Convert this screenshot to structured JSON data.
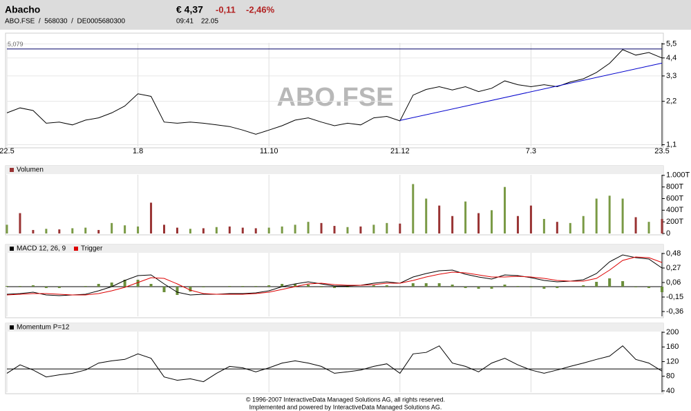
{
  "header": {
    "name": "Abacho",
    "ids": "ABO.FSE  /  568030  /  DE0005680300",
    "price": "€ 4,37",
    "change": "-0,11",
    "change_pct": "-2,46%",
    "time": "09:41",
    "date": "22.05"
  },
  "watermark": "ABO.FSE",
  "footer": [
    "© 1996-2007 InteractiveData Managed Solutions  AG, all rights reserved.",
    "Implemented and powered by  InteractiveData Managed Solutions  AG."
  ],
  "chart_data": [
    {
      "type": "line",
      "log": true,
      "grid": true,
      "xlim": [
        0,
        50
      ],
      "xticks": [
        {
          "value": 0,
          "label": "22.5"
        },
        {
          "value": 10,
          "label": "1.8"
        },
        {
          "value": 20,
          "label": "11.10"
        },
        {
          "value": 30,
          "label": "21.12"
        },
        {
          "value": 40,
          "label": "7.3"
        },
        {
          "value": 50,
          "label": "23.5"
        }
      ],
      "ylim": [
        1.07,
        5.6
      ],
      "yticks": [
        {
          "value": 1.1,
          "label": "1,1"
        },
        {
          "value": 2.2,
          "label": "2,2"
        },
        {
          "value": 3.3,
          "label": "3,3"
        },
        {
          "value": 4.4,
          "label": "4,4"
        },
        {
          "value": 5.5,
          "label": "5,5"
        }
      ],
      "series": [
        {
          "color": "#000000",
          "values": [
            1.83,
            1.98,
            1.9,
            1.55,
            1.58,
            1.51,
            1.63,
            1.69,
            1.83,
            2.04,
            2.48,
            2.38,
            1.58,
            1.55,
            1.58,
            1.55,
            1.51,
            1.47,
            1.39,
            1.3,
            1.39,
            1.49,
            1.63,
            1.69,
            1.58,
            1.49,
            1.55,
            1.51,
            1.69,
            1.73,
            1.61,
            2.43,
            2.66,
            2.78,
            2.64,
            2.78,
            2.57,
            2.71,
            3.05,
            2.87,
            2.78,
            2.87,
            2.78,
            3.0,
            3.15,
            3.49,
            4.04,
            5.02,
            4.6,
            4.8,
            4.4
          ]
        }
      ],
      "hline": {
        "value": 5.079,
        "label": "5,079",
        "color": "#000066"
      },
      "trendline": {
        "color": "#0000cc",
        "x": [
          30,
          50
        ],
        "values": [
          1.62,
          4.05
        ]
      }
    },
    {
      "type": "bar",
      "legend": "Volumen",
      "legend_color": "#993333",
      "ylim": [
        0,
        1010
      ],
      "yticks": [
        0,
        {
          "value": 200,
          "label": "200T"
        },
        {
          "value": 400,
          "label": "400T"
        },
        {
          "value": 600,
          "label": "600T"
        },
        {
          "value": 800,
          "label": "800T"
        },
        {
          "value": 1000,
          "label": "1.000T"
        }
      ],
      "values": [
        150,
        350,
        60,
        80,
        70,
        90,
        100,
        60,
        180,
        140,
        120,
        530,
        150,
        100,
        80,
        90,
        110,
        120,
        100,
        90,
        100,
        120,
        150,
        200,
        180,
        130,
        110,
        120,
        150,
        180,
        170,
        850,
        600,
        480,
        300,
        550,
        350,
        400,
        800,
        300,
        480,
        250,
        200,
        180,
        300,
        600,
        650,
        600,
        280,
        200,
        250
      ],
      "colors": [
        "#7a9a45",
        "#993333",
        "#993333",
        "#7a9a45",
        "#993333",
        "#7a9a45",
        "#7a9a45",
        "#993333",
        "#7a9a45",
        "#7a9a45",
        "#7a9a45",
        "#993333",
        "#993333",
        "#993333",
        "#7a9a45",
        "#993333",
        "#7a9a45",
        "#993333",
        "#993333",
        "#993333",
        "#7a9a45",
        "#7a9a45",
        "#7a9a45",
        "#7a9a45",
        "#993333",
        "#993333",
        "#7a9a45",
        "#993333",
        "#7a9a45",
        "#7a9a45",
        "#993333",
        "#7a9a45",
        "#7a9a45",
        "#993333",
        "#993333",
        "#7a9a45",
        "#993333",
        "#7a9a45",
        "#7a9a45",
        "#993333",
        "#993333",
        "#7a9a45",
        "#993333",
        "#7a9a45",
        "#7a9a45",
        "#7a9a45",
        "#7a9a45",
        "#7a9a45",
        "#993333",
        "#7a9a45",
        "#993333"
      ]
    },
    {
      "type": "line",
      "ylim": [
        -0.43,
        0.49
      ],
      "yticks": [
        {
          "value": -0.36,
          "label": "-0,36"
        },
        {
          "value": -0.15,
          "label": "-0,15"
        },
        {
          "value": 0.06,
          "label": "0,06"
        },
        {
          "value": 0.27,
          "label": "0,27"
        },
        {
          "value": 0.48,
          "label": "0,48"
        }
      ],
      "refline": 0,
      "series": [
        {
          "name": "MACD 12, 26, 9",
          "color": "#000000",
          "values": [
            -0.11,
            -0.1,
            -0.08,
            -0.12,
            -0.13,
            -0.12,
            -0.11,
            -0.06,
            0.0,
            0.09,
            0.16,
            0.17,
            0.04,
            -0.08,
            -0.12,
            -0.11,
            -0.11,
            -0.1,
            -0.1,
            -0.09,
            -0.06,
            0.0,
            0.04,
            0.07,
            0.04,
            0.01,
            0.01,
            0.02,
            0.05,
            0.07,
            0.05,
            0.14,
            0.19,
            0.23,
            0.24,
            0.18,
            0.14,
            0.11,
            0.17,
            0.16,
            0.13,
            0.09,
            0.07,
            0.08,
            0.1,
            0.19,
            0.36,
            0.46,
            0.42,
            0.4,
            0.27
          ]
        },
        {
          "name": "Trigger",
          "color": "#dd0000",
          "values": [
            -0.12,
            -0.11,
            -0.1,
            -0.1,
            -0.11,
            -0.12,
            -0.12,
            -0.1,
            -0.06,
            -0.01,
            0.06,
            0.13,
            0.12,
            0.04,
            -0.05,
            -0.1,
            -0.11,
            -0.11,
            -0.11,
            -0.1,
            -0.08,
            -0.04,
            0.0,
            0.04,
            0.05,
            0.03,
            0.02,
            0.02,
            0.03,
            0.05,
            0.05,
            0.09,
            0.14,
            0.18,
            0.21,
            0.2,
            0.17,
            0.14,
            0.14,
            0.15,
            0.14,
            0.12,
            0.09,
            0.08,
            0.08,
            0.12,
            0.24,
            0.38,
            0.43,
            0.42,
            0.35
          ]
        }
      ],
      "histogram": {
        "color": "#6b8e3a",
        "values": [
          0.01,
          0.01,
          0.02,
          -0.02,
          -0.02,
          0.0,
          0.01,
          0.04,
          0.06,
          0.1,
          0.1,
          0.04,
          -0.08,
          -0.12,
          -0.07,
          -0.01,
          0.0,
          0.01,
          0.01,
          0.01,
          0.02,
          0.04,
          0.04,
          0.03,
          -0.01,
          -0.02,
          -0.01,
          0.0,
          0.02,
          0.02,
          0.0,
          0.05,
          0.05,
          0.05,
          0.03,
          -0.02,
          -0.03,
          -0.03,
          0.03,
          0.01,
          -0.01,
          -0.03,
          -0.02,
          0.0,
          0.02,
          0.07,
          0.12,
          0.08,
          -0.01,
          -0.02,
          -0.08
        ]
      }
    },
    {
      "type": "line",
      "ylim": [
        36,
        202
      ],
      "yticks": [
        40,
        80,
        120,
        160,
        200
      ],
      "refline": 100,
      "series": [
        {
          "name": "Momentum P=12",
          "color": "#000000",
          "values": [
            88,
            111,
            97,
            78,
            84,
            88,
            97,
            116,
            122,
            126,
            141,
            129,
            78,
            69,
            73,
            65,
            88,
            107,
            103,
            92,
            103,
            116,
            122,
            116,
            107,
            88,
            92,
            97,
            107,
            114,
            88,
            141,
            145,
            163,
            116,
            107,
            92,
            116,
            129,
            111,
            97,
            88,
            97,
            107,
            116,
            126,
            135,
            163,
            126,
            116,
            94
          ]
        }
      ]
    }
  ]
}
